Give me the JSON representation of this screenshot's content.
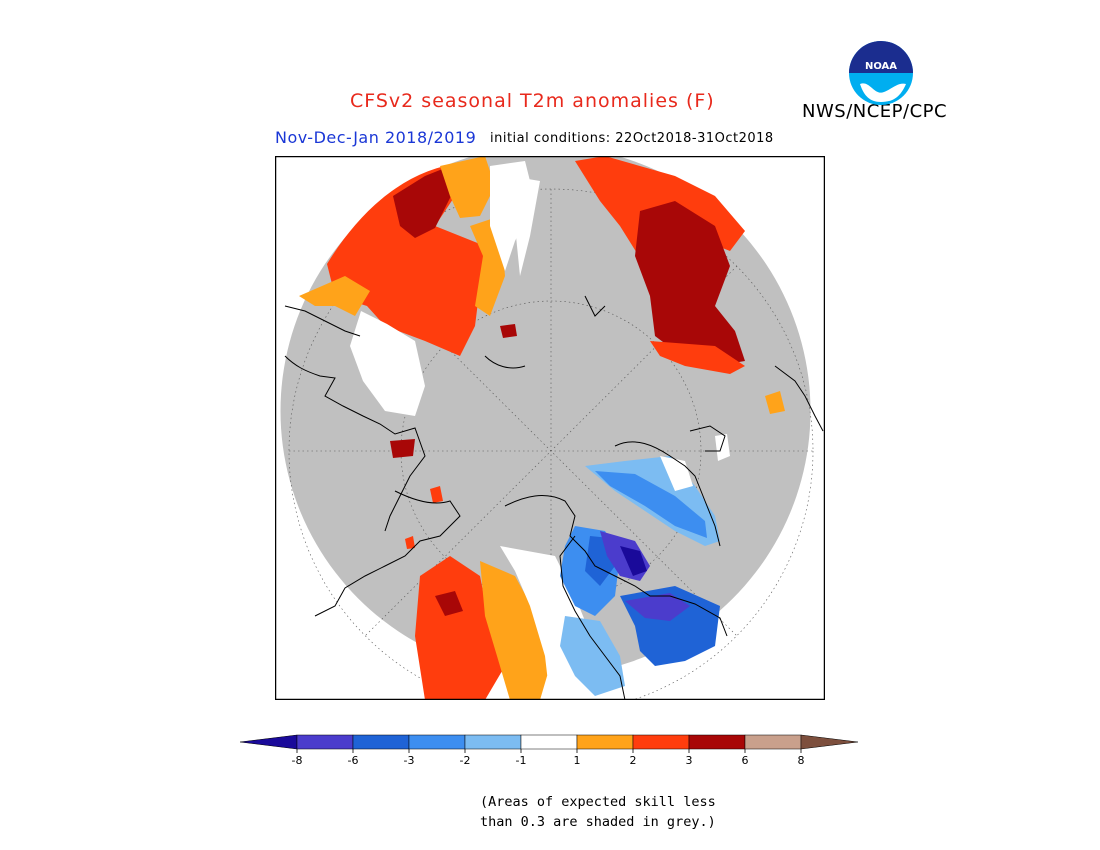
{
  "header": {
    "title": "CFSv2 seasonal T2m anomalies (F)",
    "organization": "NWS/NCEP/CPC",
    "season_label": "Nov-Dec-Jan 2018/2019",
    "initial_conditions": "initial conditions: 22Oct2018-31Oct2018",
    "logo_text": "NOAA"
  },
  "colorbar": {
    "bins": [
      {
        "color": "#1a0a9a"
      },
      {
        "color": "#4b3ccc"
      },
      {
        "color": "#1f63d6"
      },
      {
        "color": "#3d8ef0"
      },
      {
        "color": "#7cbcf2"
      },
      {
        "color": "#ffffff"
      },
      {
        "color": "#ffa31a"
      },
      {
        "color": "#ff3d0d"
      },
      {
        "color": "#a80707"
      },
      {
        "color": "#c9a08c"
      },
      {
        "color": "#7d4f3d"
      }
    ],
    "ticks": [
      "-8",
      "-6",
      "-3",
      "-2",
      "-1",
      "1",
      "2",
      "3",
      "6",
      "8"
    ]
  },
  "note": {
    "line1": "(Areas of expected skill less",
    "line2": "than 0.3 are shaded in grey.)"
  },
  "colors": {
    "grey_mask": "#c0c0c0",
    "title_red": "#e8291c",
    "season_blue": "#1a37d6"
  }
}
